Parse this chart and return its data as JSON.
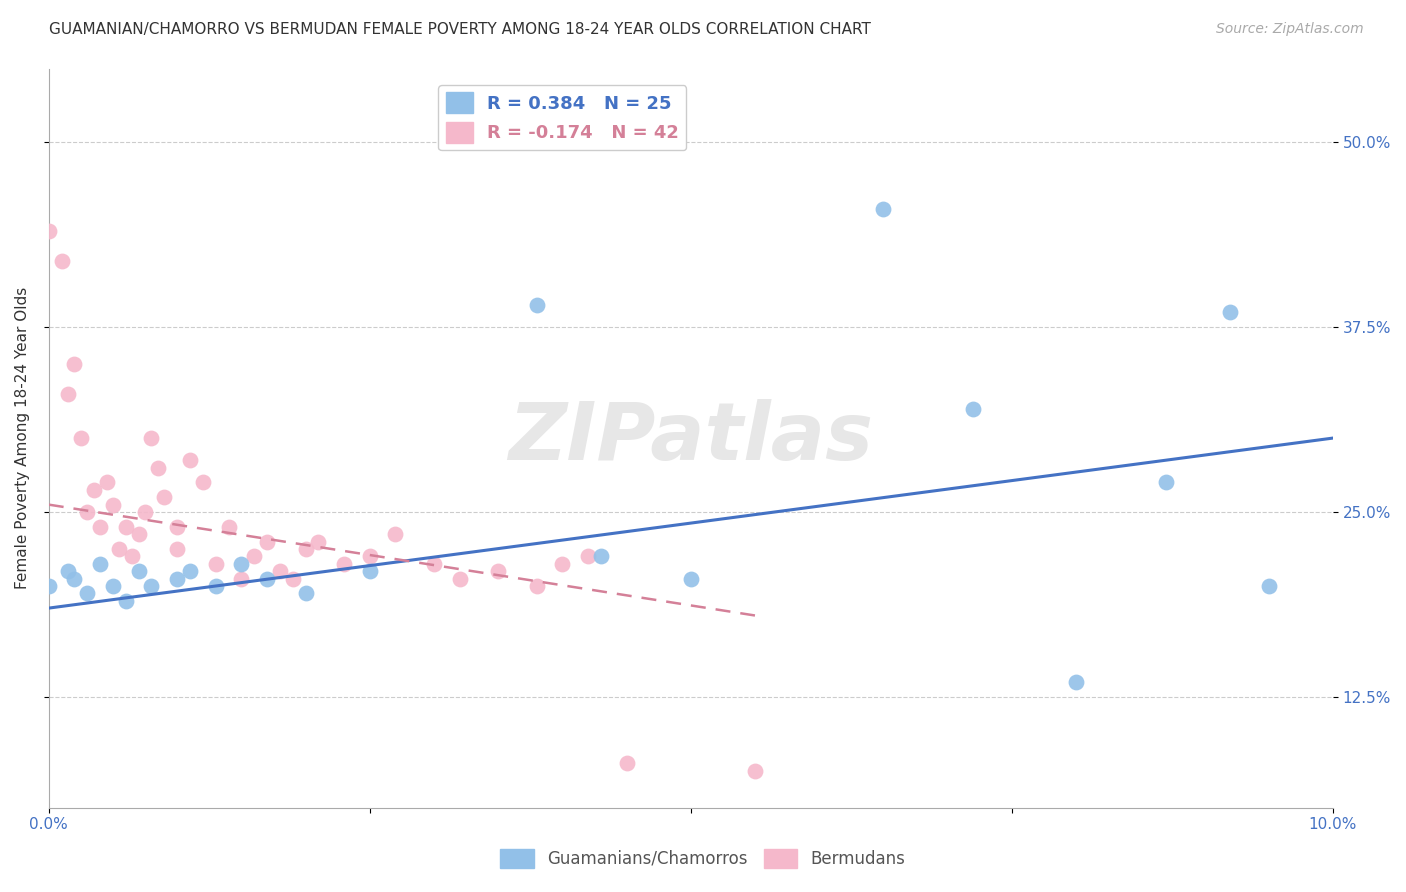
{
  "title": "GUAMANIAN/CHAMORRO VS BERMUDAN FEMALE POVERTY AMONG 18-24 YEAR OLDS CORRELATION CHART",
  "source": "Source: ZipAtlas.com",
  "ylabel": "Female Poverty Among 18-24 Year Olds",
  "xlim": [
    0.0,
    10.0
  ],
  "ylim": [
    5.0,
    55.0
  ],
  "xticks": [
    0.0,
    2.5,
    5.0,
    7.5,
    10.0
  ],
  "xtick_labels": [
    "0.0%",
    "",
    "",
    "",
    "10.0%"
  ],
  "ytick_vals": [
    12.5,
    25.0,
    37.5,
    50.0
  ],
  "ytick_labels": [
    "12.5%",
    "25.0%",
    "37.5%",
    "50.0%"
  ],
  "legend1_R": "R = 0.384",
  "legend1_N": "N = 25",
  "legend2_R": "R = -0.174",
  "legend2_N": "N = 42",
  "blue_color": "#92c0e8",
  "pink_color": "#f5b8cb",
  "blue_line_color": "#4472c4",
  "pink_line_color": "#d48098",
  "watermark": "ZIPatlas",
  "guamanian_x": [
    0.0,
    0.15,
    0.2,
    0.3,
    0.4,
    0.5,
    0.6,
    0.7,
    0.8,
    1.0,
    1.1,
    1.3,
    1.5,
    1.7,
    2.0,
    2.5,
    3.8,
    4.3,
    5.0,
    6.5,
    7.2,
    8.0,
    8.7,
    9.2,
    9.5
  ],
  "guamanian_y": [
    20.0,
    21.0,
    20.5,
    19.5,
    21.5,
    20.0,
    19.0,
    21.0,
    20.0,
    20.5,
    21.0,
    20.0,
    21.5,
    20.5,
    19.5,
    21.0,
    39.0,
    22.0,
    20.5,
    45.5,
    32.0,
    13.5,
    27.0,
    38.5,
    20.0
  ],
  "bermudan_x": [
    0.0,
    0.1,
    0.15,
    0.2,
    0.25,
    0.3,
    0.35,
    0.4,
    0.45,
    0.5,
    0.55,
    0.6,
    0.65,
    0.7,
    0.75,
    0.8,
    0.85,
    0.9,
    1.0,
    1.0,
    1.1,
    1.2,
    1.3,
    1.4,
    1.5,
    1.6,
    1.7,
    1.8,
    1.9,
    2.0,
    2.1,
    2.3,
    2.5,
    2.7,
    3.0,
    3.2,
    3.5,
    3.8,
    4.0,
    4.2,
    4.5,
    5.5
  ],
  "bermudan_y": [
    44.0,
    42.0,
    33.0,
    35.0,
    30.0,
    25.0,
    26.5,
    24.0,
    27.0,
    25.5,
    22.5,
    24.0,
    22.0,
    23.5,
    25.0,
    30.0,
    28.0,
    26.0,
    24.0,
    22.5,
    28.5,
    27.0,
    21.5,
    24.0,
    20.5,
    22.0,
    23.0,
    21.0,
    20.5,
    22.5,
    23.0,
    21.5,
    22.0,
    23.5,
    21.5,
    20.5,
    21.0,
    20.0,
    21.5,
    22.0,
    8.0,
    7.5
  ],
  "blue_line_x": [
    0.0,
    10.0
  ],
  "blue_line_y": [
    18.5,
    30.0
  ],
  "pink_line_x": [
    0.0,
    5.5
  ],
  "pink_line_y": [
    25.5,
    18.0
  ]
}
